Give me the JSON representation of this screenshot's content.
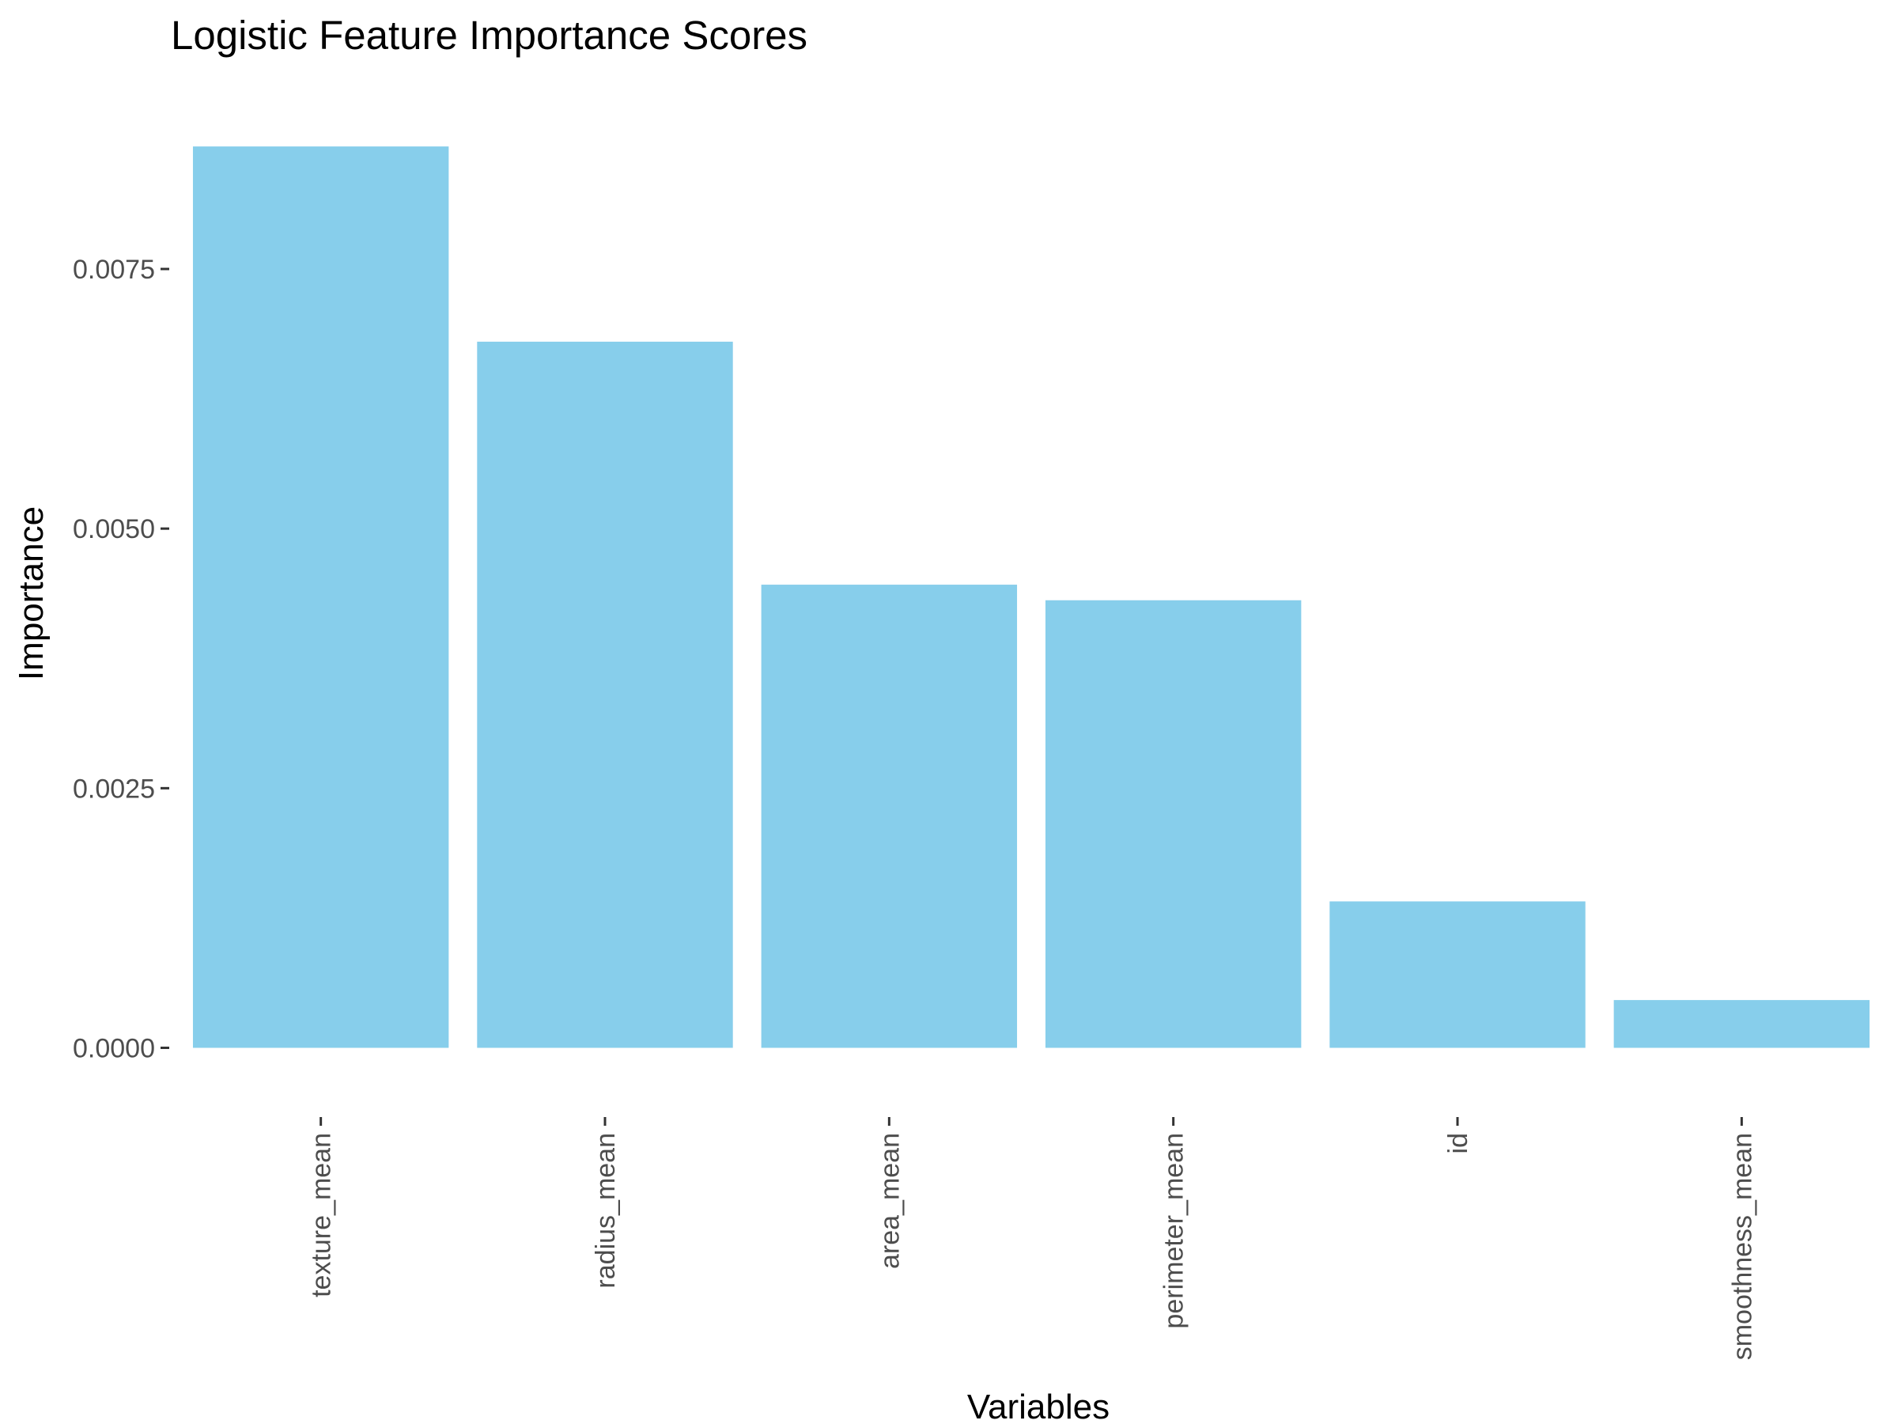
{
  "chart_data": {
    "type": "bar",
    "title": "Logistic Feature Importance Scores",
    "xlabel": "Variables",
    "ylabel": "Importance",
    "categories": [
      "texture_mean",
      "radius_mean",
      "area_mean",
      "perimeter_mean",
      "id",
      "smoothness_mean"
    ],
    "values": [
      0.00868,
      0.0068,
      0.00446,
      0.00431,
      0.00141,
      0.00046
    ],
    "yticks": [
      0,
      0.0025,
      0.005,
      0.0075
    ],
    "ytick_labels": [
      "0.0000",
      "0.0025",
      "0.0050",
      "0.0075"
    ],
    "ylim": [
      -0.0004,
      0.0091
    ],
    "grid": false,
    "bar_color": "#87CEEB",
    "background": "#ffffff"
  }
}
